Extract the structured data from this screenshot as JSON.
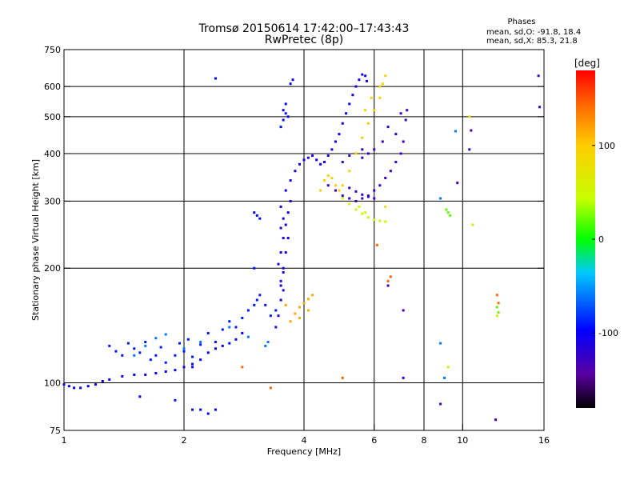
{
  "chart_data": {
    "type": "scatter",
    "title": "Tromsø 20150614 17:42:00–17:43:43",
    "subtitle": "RwPretec (8p)",
    "stats": {
      "heading": "Phases",
      "line1": "mean, sd,O: -91.8, 18.4",
      "line2": "mean, sd,X:  85.3, 21.8"
    },
    "xlabel": "Frequency [MHz]",
    "ylabel": "Stationary phase Virtual Height [km]",
    "x_scale": "log",
    "y_scale": "log",
    "xlim": [
      1,
      16
    ],
    "ylim": [
      75,
      750
    ],
    "x_ticks": [
      1,
      2,
      4,
      6,
      8,
      10,
      16
    ],
    "x_tick_labels": [
      "1",
      "2",
      "4",
      "6",
      "8",
      "10",
      "16"
    ],
    "x_grid": [
      2,
      4,
      6,
      8,
      10
    ],
    "y_ticks": [
      75,
      100,
      200,
      300,
      400,
      500,
      600,
      750
    ],
    "y_tick_labels": [
      "75",
      "100",
      "200",
      "300",
      "400",
      "500",
      "600",
      "750"
    ],
    "y_grid": [
      100,
      200,
      300,
      400,
      500,
      600
    ],
    "colorbar": {
      "label": "[deg]",
      "range": [
        -180,
        180
      ],
      "ticks": [
        100,
        0,
        -100
      ],
      "tick_labels": [
        "100",
        "0",
        "-100"
      ]
    },
    "series": [
      {
        "phase_deg": -100,
        "points": [
          [
            1.0,
            99
          ],
          [
            1.03,
            98
          ],
          [
            1.06,
            97
          ],
          [
            1.1,
            97
          ],
          [
            1.15,
            98
          ],
          [
            1.2,
            99
          ],
          [
            1.25,
            101
          ],
          [
            1.3,
            102
          ],
          [
            1.4,
            104
          ],
          [
            1.5,
            105
          ],
          [
            1.6,
            105
          ],
          [
            1.7,
            106
          ],
          [
            1.8,
            107
          ],
          [
            1.9,
            108
          ],
          [
            2.0,
            110
          ],
          [
            2.1,
            112
          ],
          [
            2.2,
            115
          ],
          [
            2.3,
            120
          ],
          [
            2.4,
            123
          ],
          [
            2.5,
            125
          ],
          [
            2.6,
            127
          ],
          [
            2.7,
            130
          ],
          [
            2.8,
            135
          ]
        ]
      },
      {
        "phase_deg": -90,
        "points": [
          [
            1.3,
            125
          ],
          [
            1.35,
            121
          ],
          [
            1.4,
            118
          ],
          [
            1.45,
            127
          ],
          [
            1.5,
            123
          ],
          [
            1.55,
            120
          ],
          [
            1.6,
            128
          ],
          [
            1.65,
            115
          ],
          [
            1.7,
            118
          ],
          [
            1.75,
            124
          ],
          [
            1.8,
            113
          ],
          [
            1.9,
            118
          ],
          [
            1.95,
            127
          ],
          [
            2.0,
            121
          ],
          [
            2.05,
            130
          ],
          [
            2.1,
            117
          ],
          [
            2.2,
            126
          ],
          [
            2.3,
            135
          ],
          [
            2.4,
            128
          ],
          [
            2.5,
            138
          ],
          [
            2.6,
            145
          ],
          [
            2.7,
            140
          ],
          [
            2.8,
            148
          ],
          [
            2.9,
            155
          ],
          [
            3.0,
            160
          ],
          [
            3.05,
            165
          ],
          [
            3.1,
            170
          ],
          [
            3.2,
            160
          ],
          [
            3.3,
            150
          ],
          [
            3.4,
            155
          ]
        ]
      },
      {
        "phase_deg": -105,
        "points": [
          [
            3.5,
            180
          ],
          [
            3.55,
            200
          ],
          [
            3.6,
            220
          ],
          [
            3.65,
            240
          ],
          [
            3.6,
            260
          ],
          [
            3.65,
            280
          ],
          [
            3.7,
            300
          ],
          [
            3.6,
            320
          ],
          [
            3.7,
            340
          ],
          [
            3.8,
            360
          ],
          [
            3.9,
            375
          ],
          [
            4.0,
            385
          ],
          [
            4.1,
            390
          ],
          [
            4.2,
            395
          ],
          [
            4.3,
            385
          ],
          [
            4.4,
            375
          ],
          [
            4.5,
            380
          ],
          [
            4.6,
            395
          ],
          [
            4.7,
            410
          ],
          [
            4.8,
            430
          ],
          [
            4.9,
            450
          ],
          [
            5.0,
            480
          ],
          [
            5.1,
            510
          ],
          [
            5.2,
            540
          ],
          [
            5.3,
            570
          ],
          [
            5.4,
            600
          ],
          [
            5.5,
            625
          ],
          [
            5.6,
            645
          ],
          [
            5.7,
            640
          ],
          [
            5.75,
            620
          ]
        ]
      },
      {
        "phase_deg": -110,
        "points": [
          [
            3.4,
            140
          ],
          [
            3.45,
            150
          ],
          [
            3.5,
            165
          ],
          [
            3.55,
            175
          ],
          [
            3.5,
            185
          ],
          [
            3.55,
            195
          ],
          [
            3.45,
            205
          ],
          [
            3.5,
            220
          ],
          [
            3.55,
            240
          ],
          [
            3.5,
            255
          ],
          [
            3.55,
            270
          ],
          [
            3.5,
            290
          ]
        ]
      },
      {
        "phase_deg": -95,
        "points": [
          [
            3.5,
            470
          ],
          [
            3.55,
            490
          ],
          [
            3.6,
            510
          ],
          [
            3.65,
            500
          ],
          [
            3.6,
            540
          ],
          [
            3.55,
            520
          ],
          [
            3.7,
            610
          ],
          [
            3.75,
            625
          ],
          [
            3.0,
            280
          ],
          [
            3.05,
            275
          ],
          [
            3.1,
            270
          ],
          [
            3.0,
            200
          ],
          [
            2.1,
            110
          ],
          [
            2.4,
            630
          ],
          [
            1.9,
            90
          ],
          [
            2.1,
            85
          ],
          [
            2.2,
            85
          ],
          [
            2.3,
            83
          ],
          [
            2.4,
            85
          ],
          [
            1.55,
            92
          ]
        ]
      },
      {
        "phase_deg": -125,
        "points": [
          [
            4.6,
            330
          ],
          [
            4.8,
            320
          ],
          [
            5.0,
            310
          ],
          [
            5.2,
            305
          ],
          [
            5.4,
            300
          ],
          [
            5.6,
            305
          ],
          [
            5.8,
            310
          ],
          [
            6.0,
            320
          ],
          [
            6.2,
            330
          ],
          [
            6.4,
            345
          ],
          [
            6.6,
            360
          ],
          [
            6.8,
            380
          ],
          [
            7.0,
            400
          ],
          [
            7.1,
            430
          ],
          [
            6.8,
            450
          ],
          [
            6.5,
            470
          ],
          [
            6.3,
            430
          ],
          [
            6.0,
            410
          ],
          [
            5.8,
            400
          ],
          [
            5.6,
            390
          ]
        ]
      },
      {
        "phase_deg": -125,
        "points": [
          [
            5.2,
            325
          ],
          [
            5.4,
            318
          ],
          [
            5.6,
            312
          ],
          [
            5.8,
            308
          ],
          [
            6.0,
            305
          ],
          [
            5.0,
            380
          ],
          [
            5.2,
            395
          ],
          [
            5.4,
            400
          ],
          [
            5.6,
            410
          ],
          [
            7.2,
            490
          ],
          [
            7.25,
            520
          ],
          [
            7.0,
            510
          ]
        ]
      },
      {
        "phase_deg": 95,
        "points": [
          [
            4.4,
            320
          ],
          [
            4.5,
            340
          ],
          [
            4.6,
            350
          ],
          [
            4.7,
            345
          ],
          [
            4.8,
            330
          ],
          [
            4.9,
            320
          ],
          [
            5.0,
            330
          ],
          [
            5.2,
            360
          ],
          [
            5.4,
            400
          ],
          [
            5.6,
            440
          ],
          [
            5.8,
            480
          ],
          [
            6.0,
            520
          ],
          [
            6.2,
            560
          ],
          [
            6.3,
            610
          ],
          [
            6.4,
            640
          ],
          [
            6.2,
            600
          ],
          [
            5.9,
            560
          ],
          [
            5.7,
            520
          ]
        ]
      },
      {
        "phase_deg": 50,
        "points": [
          [
            5.0,
            305
          ],
          [
            5.2,
            295
          ],
          [
            5.4,
            285
          ],
          [
            5.6,
            278
          ],
          [
            5.8,
            272
          ],
          [
            6.0,
            268
          ],
          [
            6.2,
            266
          ],
          [
            6.4,
            265
          ],
          [
            5.5,
            290
          ],
          [
            5.7,
            280
          ]
        ]
      },
      {
        "phase_deg": 115,
        "points": [
          [
            3.7,
            145
          ],
          [
            3.8,
            152
          ],
          [
            3.9,
            158
          ],
          [
            4.0,
            162
          ],
          [
            4.1,
            166
          ],
          [
            4.2,
            170
          ],
          [
            3.6,
            160
          ],
          [
            3.9,
            148
          ],
          [
            4.1,
            155
          ]
        ]
      },
      {
        "phase_deg": -60,
        "points": [
          [
            1.7,
            131
          ],
          [
            1.8,
            134
          ],
          [
            1.6,
            125
          ],
          [
            1.5,
            118
          ],
          [
            2.0,
            123
          ],
          [
            2.2,
            128
          ],
          [
            2.6,
            140
          ],
          [
            2.9,
            132
          ],
          [
            3.2,
            125
          ],
          [
            3.25,
            128
          ],
          [
            8.8,
            305
          ],
          [
            9.6,
            458
          ],
          [
            8.8,
            127
          ],
          [
            9.0,
            103
          ]
        ]
      },
      {
        "phase_deg": 20,
        "points": [
          [
            9.1,
            285
          ],
          [
            9.2,
            280
          ],
          [
            9.3,
            275
          ],
          [
            12.2,
            158
          ],
          [
            12.3,
            153
          ]
        ]
      },
      {
        "phase_deg": 75,
        "points": [
          [
            10.6,
            260
          ],
          [
            10.4,
            500
          ],
          [
            12.2,
            150
          ],
          [
            9.2,
            110
          ],
          [
            6.4,
            290
          ]
        ]
      },
      {
        "phase_deg": 145,
        "points": [
          [
            12.2,
            170
          ],
          [
            12.3,
            162
          ],
          [
            6.5,
            185
          ],
          [
            6.6,
            190
          ],
          [
            3.3,
            97
          ],
          [
            5.0,
            103
          ],
          [
            2.8,
            110
          ],
          [
            6.1,
            230
          ]
        ]
      },
      {
        "phase_deg": -130,
        "points": [
          [
            10.4,
            410
          ],
          [
            15.5,
            640
          ],
          [
            15.6,
            530
          ],
          [
            12.1,
            80
          ],
          [
            8.8,
            88
          ],
          [
            7.1,
            103
          ],
          [
            9.7,
            335
          ],
          [
            10.5,
            460
          ],
          [
            6.5,
            180
          ],
          [
            7.1,
            155
          ]
        ]
      }
    ]
  }
}
